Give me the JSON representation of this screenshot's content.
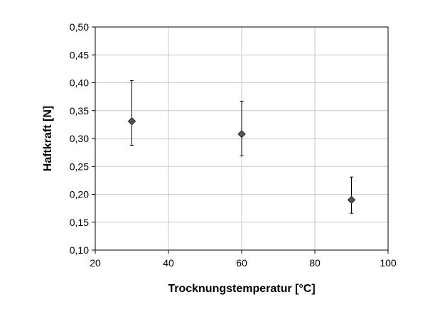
{
  "chart_data": {
    "type": "scatter",
    "title": "",
    "xlabel": "Trocknungstemperatur [°C]",
    "ylabel": "Haftkraft [N]",
    "xlim": [
      20,
      100
    ],
    "ylim": [
      0.1,
      0.5
    ],
    "x_ticks": [
      "20",
      "40",
      "60",
      "80",
      "100"
    ],
    "y_ticks": [
      "0,10",
      "0,15",
      "0,20",
      "0,25",
      "0,30",
      "0,35",
      "0,40",
      "0,45",
      "0,50"
    ],
    "grid": true,
    "series": [
      {
        "marker": "diamond",
        "color": "#555555",
        "points": [
          {
            "x": 30,
            "y": 0.331,
            "err_low": 0.288,
            "err_high": 0.404
          },
          {
            "x": 60,
            "y": 0.308,
            "err_low": 0.269,
            "err_high": 0.367
          },
          {
            "x": 90,
            "y": 0.19,
            "err_low": 0.166,
            "err_high": 0.231
          }
        ]
      }
    ]
  }
}
